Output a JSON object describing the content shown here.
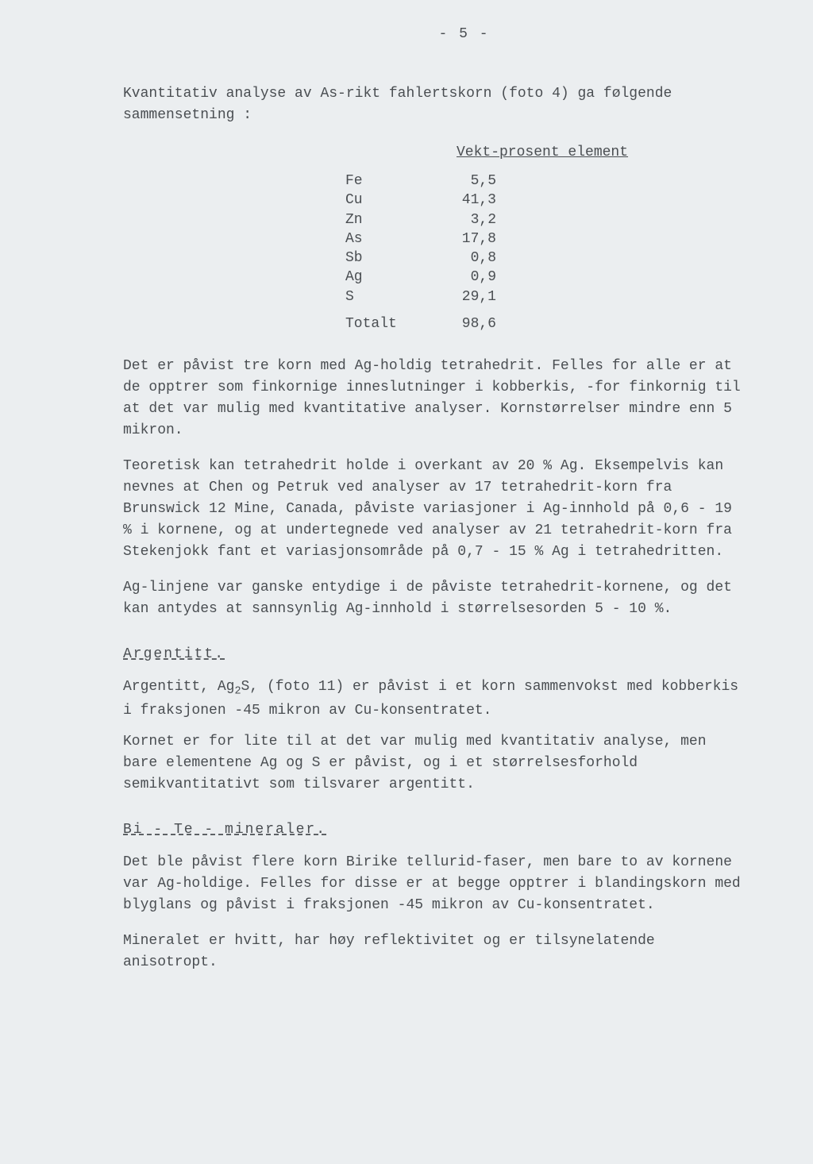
{
  "pageNumber": "- 5 -",
  "intro": "Kvantitativ analyse av As-rikt fahlertskorn (foto 4) ga følgende sammensetning :",
  "tableHeader": "Vekt-prosent element",
  "elements": [
    {
      "sym": "Fe",
      "val": "5,5"
    },
    {
      "sym": "Cu",
      "val": "41,3"
    },
    {
      "sym": "Zn",
      "val": "3,2"
    },
    {
      "sym": "As",
      "val": "17,8"
    },
    {
      "sym": "Sb",
      "val": "0,8"
    },
    {
      "sym": "Ag",
      "val": "0,9"
    },
    {
      "sym": "S",
      "val": "29,1"
    }
  ],
  "totalLabel": "Totalt",
  "totalValue": "98,6",
  "para2": "Det er påvist tre korn med Ag-holdig tetrahedrit. Felles for alle er at de opptrer som finkornige inneslutninger i kobberkis, -for finkornig til at det var mulig med kvantitative analyser. Kornstørrelser mindre enn 5 mikron.",
  "para3": "Teoretisk kan tetrahedrit holde i overkant av 20 % Ag. Eksempelvis kan nevnes at Chen og Petruk ved analyser av 17 tetrahedrit-korn fra Brunswick 12 Mine, Canada, påviste variasjoner i Ag-innhold på 0,6 - 19 % i kornene, og at undertegnede ved analyser av 21 tetrahedrit-korn fra Stekenjokk fant et variasjonsområde på 0,7 - 15 % Ag i tetrahedritten.",
  "para4": "Ag-linjene var ganske entydige i de påviste tetrahedrit-kornene, og det kan antydes at sannsynlig Ag-innhold i størrelsesorden 5 - 10 %.",
  "heading1": "Argentitt.",
  "para5a": "Argentitt, Ag",
  "para5sub": "2",
  "para5b": "S, (foto 11) er påvist i et korn sammenvokst med kobberkis i fraksjonen -45 mikron av Cu-konsentratet.",
  "para6": "Kornet er for lite til at det var mulig med kvantitativ analyse, men bare elementene Ag og S er påvist, og i et størrelsesforhold semikvantitativt som tilsvarer argentitt.",
  "heading2": "Bi - Te - mineraler.",
  "para7": "Det ble påvist flere korn Birike tellurid-faser, men bare to av kornene var Ag-holdige. Felles for disse er at begge opptrer i blandingskorn med blyglans og påvist i fraksjonen -45 mikron av Cu-konsentratet.",
  "para8": "Mineralet er hvitt, har høy reflektivitet og er tilsynelatende anisotropt."
}
